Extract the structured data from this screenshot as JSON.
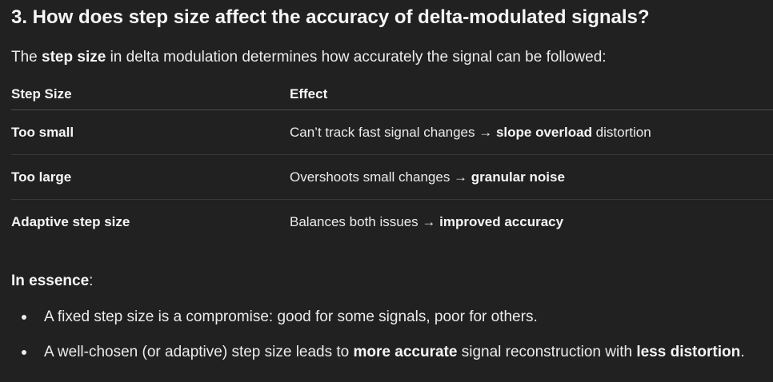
{
  "heading": "3. How does step size affect the accuracy of delta-modulated signals?",
  "intro": [
    "The ",
    "step size",
    " in delta modulation determines how accurately the signal can be followed:"
  ],
  "table": {
    "headers": [
      "Step Size",
      "Effect"
    ],
    "rows": [
      {
        "step_size": "Too small",
        "effect": [
          "Can’t track fast signal changes → ",
          "slope overload",
          " distortion"
        ]
      },
      {
        "step_size": "Too large",
        "effect": [
          "Overshoots small changes → ",
          "granular noise"
        ]
      },
      {
        "step_size": "Adaptive step size",
        "effect": [
          "Balances both issues → ",
          "improved accuracy"
        ]
      }
    ]
  },
  "essence": [
    "In essence",
    ":"
  ],
  "bullets": [
    [
      "A fixed step size is a compromise: good for some signals, poor for others."
    ],
    [
      "A well-chosen (or adaptive) step size leads to ",
      "more accurate",
      " signal reconstruction with ",
      "less distortion",
      "."
    ]
  ],
  "colors": {
    "background": "#212121",
    "text": "#ececec"
  }
}
